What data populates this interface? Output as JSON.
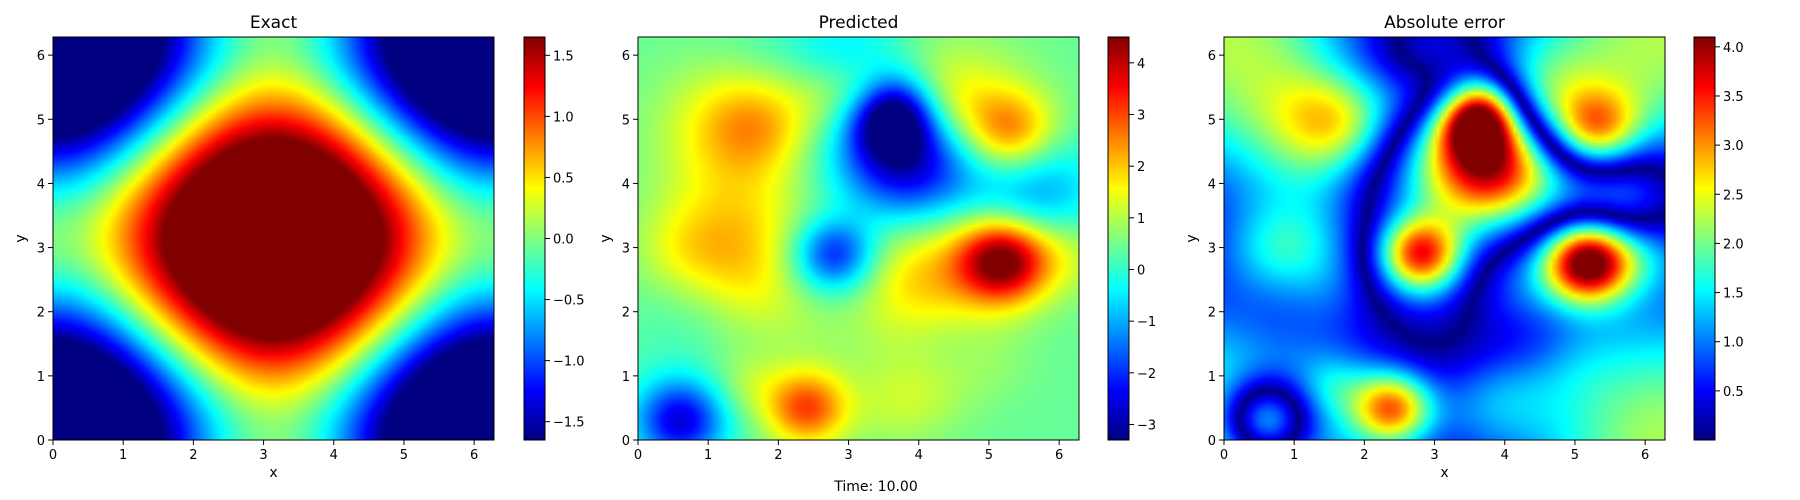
{
  "footer_text": "Time: 10.00",
  "colors": {
    "jet": [
      "#00007f",
      "#0000ff",
      "#007fff",
      "#00ffff",
      "#7fff7f",
      "#ffff00",
      "#ff7f00",
      "#ff0000",
      "#7f0000"
    ]
  },
  "chart_data": [
    {
      "type": "heatmap",
      "title": "Exact",
      "xlabel": "x",
      "ylabel": "y",
      "xlim": [
        0,
        6.283
      ],
      "ylim": [
        0,
        6.283
      ],
      "xticks": [
        "0",
        "1",
        "2",
        "3",
        "4",
        "5",
        "6"
      ],
      "yticks": [
        "0",
        "1",
        "2",
        "3",
        "4",
        "5",
        "6"
      ],
      "colormap": "jet",
      "color_range": [
        -1.65,
        1.65
      ],
      "colorbar_ticks": [
        "1.5",
        "1.0",
        "0.5",
        "0.0",
        "−0.5",
        "−1.0",
        "−1.5"
      ],
      "colorbar_tick_values": [
        1.5,
        1.0,
        0.5,
        0.0,
        -0.5,
        -1.0,
        -1.5
      ],
      "field": "exact"
    },
    {
      "type": "heatmap",
      "title": "Predicted",
      "xlabel": "",
      "ylabel": "y",
      "xlim": [
        0,
        6.283
      ],
      "ylim": [
        0,
        6.283
      ],
      "xticks": [
        "0",
        "1",
        "2",
        "3",
        "4",
        "5",
        "6"
      ],
      "yticks": [
        "0",
        "1",
        "2",
        "3",
        "4",
        "5",
        "6"
      ],
      "colormap": "jet",
      "color_range": [
        -3.3,
        4.5
      ],
      "colorbar_ticks": [
        "4",
        "3",
        "2",
        "1",
        "0",
        "−1",
        "−2",
        "−3"
      ],
      "colorbar_tick_values": [
        4,
        3,
        2,
        1,
        0,
        -1,
        -2,
        -3
      ],
      "field": "predicted"
    },
    {
      "type": "heatmap",
      "title": "Absolute error",
      "xlabel": "x",
      "ylabel": "y",
      "xlim": [
        0,
        6.283
      ],
      "ylim": [
        0,
        6.283
      ],
      "xticks": [
        "0",
        "1",
        "2",
        "3",
        "4",
        "5",
        "6"
      ],
      "yticks": [
        "0",
        "1",
        "2",
        "3",
        "4",
        "5",
        "6"
      ],
      "colormap": "jet",
      "color_range": [
        0,
        4.1
      ],
      "colorbar_ticks": [
        "4.0",
        "3.5",
        "3.0",
        "2.5",
        "2.0",
        "1.5",
        "1.0",
        "0.5"
      ],
      "colorbar_tick_values": [
        4.0,
        3.5,
        3.0,
        2.5,
        2.0,
        1.5,
        1.0,
        0.5
      ],
      "field": "error"
    }
  ]
}
